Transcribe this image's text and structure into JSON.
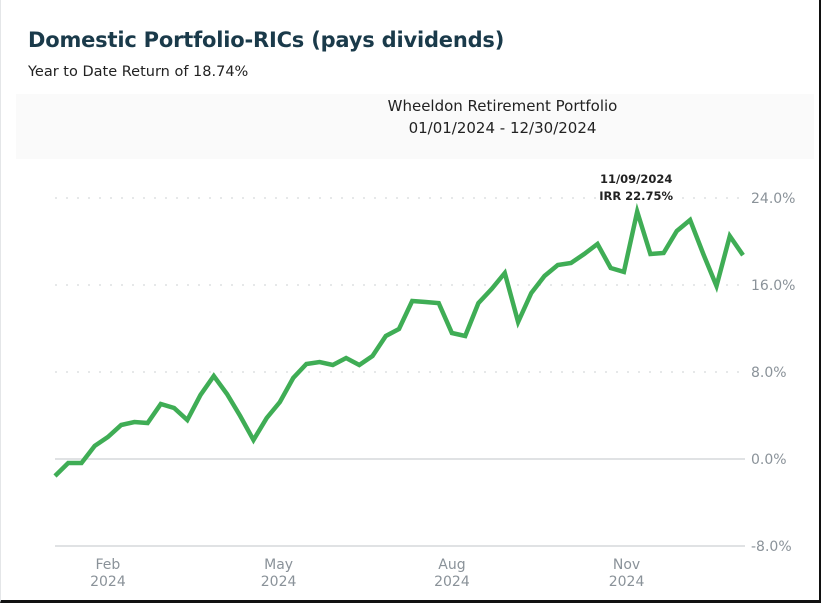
{
  "header": {
    "title": "Domestic Portfolio-RICs (pays dividends)",
    "ytd_text": "Year to Date Return of 18.74%"
  },
  "chart_header": {
    "portfolio_name": "Wheeldon Retirement Portfolio",
    "date_range": "01/01/2024 - 12/30/2024"
  },
  "colors": {
    "line": "#3fad55",
    "grid": "#d6d9dc",
    "axis_text": "#8a9299"
  },
  "chart_data": {
    "type": "line",
    "title": "Wheeldon Retirement Portfolio",
    "subtitle": "01/01/2024 - 12/30/2024",
    "xlabel": "",
    "ylabel": "",
    "ylim": [
      -8,
      24
    ],
    "y_ticks": [
      {
        "value": 24,
        "label": "24.0%"
      },
      {
        "value": 16,
        "label": "16.0%"
      },
      {
        "value": 8,
        "label": "8.0%"
      },
      {
        "value": 0,
        "label": "0.0%"
      },
      {
        "value": -8,
        "label": "-8.0%"
      }
    ],
    "x_ticks": [
      {
        "index": 4,
        "month": "Feb",
        "year": "2024"
      },
      {
        "index": 16.9,
        "month": "May",
        "year": "2024"
      },
      {
        "index": 30,
        "month": "Aug",
        "year": "2024"
      },
      {
        "index": 43.2,
        "month": "Nov",
        "year": "2024"
      }
    ],
    "grid": true,
    "legend": "none",
    "series": [
      {
        "name": "IRR",
        "values": [
          -1.56,
          -0.37,
          -0.37,
          1.2,
          2.02,
          3.13,
          3.4,
          3.31,
          5.06,
          4.69,
          3.59,
          5.89,
          7.63,
          5.98,
          3.95,
          1.75,
          3.77,
          5.24,
          7.45,
          8.74,
          8.92,
          8.64,
          9.29,
          8.64,
          9.47,
          11.31,
          11.95,
          14.53,
          14.44,
          14.34,
          11.59,
          11.31,
          14.34,
          15.63,
          17.1,
          12.6,
          15.26,
          16.83,
          17.84,
          18.02,
          18.85,
          19.77,
          17.56,
          17.2,
          22.75,
          18.85,
          18.94,
          20.97,
          21.98,
          18.85,
          15.91,
          20.51,
          18.74
        ]
      }
    ],
    "annotations": [
      {
        "index": 44,
        "date": "11/09/2024",
        "label": "IRR 22.75%"
      }
    ]
  }
}
